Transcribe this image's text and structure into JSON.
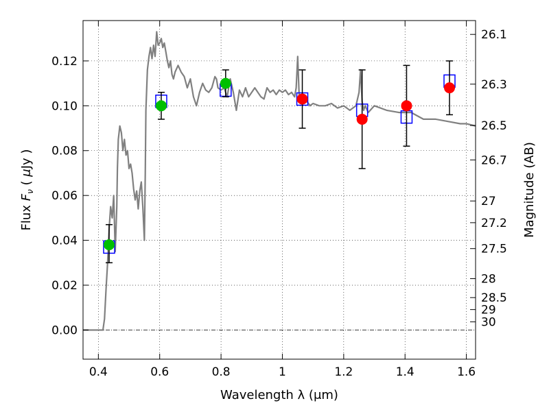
{
  "chart_data": {
    "type": "scatter",
    "xlabel": "Wavelength  λ (μm)",
    "ylabel": "Flux  F_ν  ( μJy )",
    "ylabel_parts": {
      "prefix": "Flux  ",
      "symbol": "F",
      "sub": "ν",
      "mid": "  ( ",
      "mu": "μ",
      "unit": "Jy )"
    },
    "y2label": "Magnitude (AB)",
    "xlim": [
      0.35,
      1.63
    ],
    "ylim": [
      -0.013,
      0.138
    ],
    "grid": true,
    "x_ticks": [
      {
        "value": 0.4,
        "label": "0.4"
      },
      {
        "value": 0.6,
        "label": "0.6"
      },
      {
        "value": 0.8,
        "label": "0.8"
      },
      {
        "value": 1.0,
        "label": "1"
      },
      {
        "value": 1.2,
        "label": "1.2"
      },
      {
        "value": 1.4,
        "label": "1.4"
      },
      {
        "value": 1.6,
        "label": "1.6"
      }
    ],
    "y_ticks": [
      {
        "value": 0.0,
        "label": "0.00"
      },
      {
        "value": 0.02,
        "label": "0.02"
      },
      {
        "value": 0.04,
        "label": "0.04"
      },
      {
        "value": 0.06,
        "label": "0.06"
      },
      {
        "value": 0.08,
        "label": "0.08"
      },
      {
        "value": 0.1,
        "label": "0.10"
      },
      {
        "value": 0.12,
        "label": "0.12"
      }
    ],
    "mag_ticks": [
      {
        "mag": 26.1,
        "label": "26.1"
      },
      {
        "mag": 26.3,
        "label": "26.3"
      },
      {
        "mag": 26.5,
        "label": "26.5"
      },
      {
        "mag": 26.7,
        "label": "26.7"
      },
      {
        "mag": 27,
        "label": "27"
      },
      {
        "mag": 27.2,
        "label": "27.2"
      },
      {
        "mag": 27.5,
        "label": "27.5"
      },
      {
        "mag": 28,
        "label": "28"
      },
      {
        "mag": 28.5,
        "label": "28.5"
      },
      {
        "mag": 29,
        "label": "29"
      },
      {
        "mag": 30,
        "label": "30"
      }
    ],
    "model_sed": {
      "color": "#808080",
      "x": [
        0.35,
        0.4,
        0.415,
        0.42,
        0.425,
        0.43,
        0.435,
        0.44,
        0.445,
        0.45,
        0.455,
        0.46,
        0.462,
        0.465,
        0.47,
        0.475,
        0.48,
        0.485,
        0.49,
        0.495,
        0.5,
        0.505,
        0.51,
        0.515,
        0.52,
        0.525,
        0.53,
        0.535,
        0.54,
        0.545,
        0.55,
        0.553,
        0.555,
        0.56,
        0.565,
        0.57,
        0.575,
        0.58,
        0.585,
        0.59,
        0.595,
        0.6,
        0.605,
        0.61,
        0.615,
        0.62,
        0.625,
        0.63,
        0.635,
        0.64,
        0.645,
        0.65,
        0.66,
        0.67,
        0.68,
        0.69,
        0.7,
        0.71,
        0.72,
        0.73,
        0.74,
        0.75,
        0.76,
        0.77,
        0.78,
        0.785,
        0.79,
        0.8,
        0.81,
        0.82,
        0.83,
        0.84,
        0.85,
        0.86,
        0.87,
        0.88,
        0.89,
        0.9,
        0.91,
        0.92,
        0.93,
        0.94,
        0.95,
        0.96,
        0.97,
        0.98,
        0.99,
        1.0,
        1.01,
        1.02,
        1.03,
        1.04,
        1.045,
        1.05,
        1.055,
        1.06,
        1.07,
        1.08,
        1.09,
        1.1,
        1.12,
        1.14,
        1.16,
        1.18,
        1.2,
        1.22,
        1.24,
        1.25,
        1.255,
        1.26,
        1.265,
        1.27,
        1.28,
        1.3,
        1.34,
        1.38,
        1.42,
        1.46,
        1.5,
        1.54,
        1.58,
        1.6,
        1.63
      ],
      "y": [
        0.0,
        0.0,
        0.0,
        0.005,
        0.018,
        0.03,
        0.045,
        0.055,
        0.05,
        0.06,
        0.035,
        0.055,
        0.072,
        0.085,
        0.091,
        0.088,
        0.08,
        0.085,
        0.078,
        0.08,
        0.072,
        0.074,
        0.07,
        0.063,
        0.058,
        0.062,
        0.054,
        0.062,
        0.066,
        0.055,
        0.04,
        0.07,
        0.098,
        0.116,
        0.122,
        0.126,
        0.121,
        0.127,
        0.122,
        0.133,
        0.127,
        0.128,
        0.13,
        0.126,
        0.128,
        0.124,
        0.12,
        0.117,
        0.12,
        0.114,
        0.112,
        0.115,
        0.118,
        0.115,
        0.113,
        0.108,
        0.112,
        0.104,
        0.1,
        0.106,
        0.11,
        0.107,
        0.106,
        0.108,
        0.113,
        0.112,
        0.108,
        0.107,
        0.108,
        0.104,
        0.112,
        0.106,
        0.098,
        0.107,
        0.104,
        0.108,
        0.104,
        0.106,
        0.108,
        0.106,
        0.104,
        0.103,
        0.108,
        0.106,
        0.107,
        0.105,
        0.107,
        0.106,
        0.107,
        0.105,
        0.106,
        0.104,
        0.108,
        0.122,
        0.104,
        0.102,
        0.101,
        0.102,
        0.1,
        0.101,
        0.1,
        0.1,
        0.101,
        0.099,
        0.1,
        0.098,
        0.1,
        0.106,
        0.116,
        0.102,
        0.098,
        0.1,
        0.097,
        0.1,
        0.098,
        0.097,
        0.097,
        0.094,
        0.094,
        0.093,
        0.092,
        0.092,
        0.091
      ]
    },
    "model_points": {
      "name": "model-bandpass-flux",
      "marker": "open-square",
      "color": "#0000ff",
      "x": [
        0.435,
        0.605,
        0.815,
        1.065,
        1.26,
        1.405,
        1.545
      ],
      "y": [
        0.037,
        0.102,
        0.107,
        0.103,
        0.098,
        0.095,
        0.111
      ]
    },
    "observed_points": {
      "x": [
        0.435,
        0.605,
        0.815,
        1.065,
        1.26,
        1.405,
        1.545
      ],
      "y": [
        0.038,
        0.1,
        0.11,
        0.103,
        0.094,
        0.1,
        0.108
      ],
      "yerr_low": [
        0.008,
        0.006,
        0.006,
        0.013,
        0.022,
        0.018,
        0.012
      ],
      "yerr_high": [
        0.009,
        0.006,
        0.006,
        0.013,
        0.022,
        0.018,
        0.012
      ],
      "colors": [
        "#00bf00",
        "#00bf00",
        "#00bf00",
        "#ff0000",
        "#ff0000",
        "#ff0000",
        "#ff0000"
      ]
    }
  }
}
